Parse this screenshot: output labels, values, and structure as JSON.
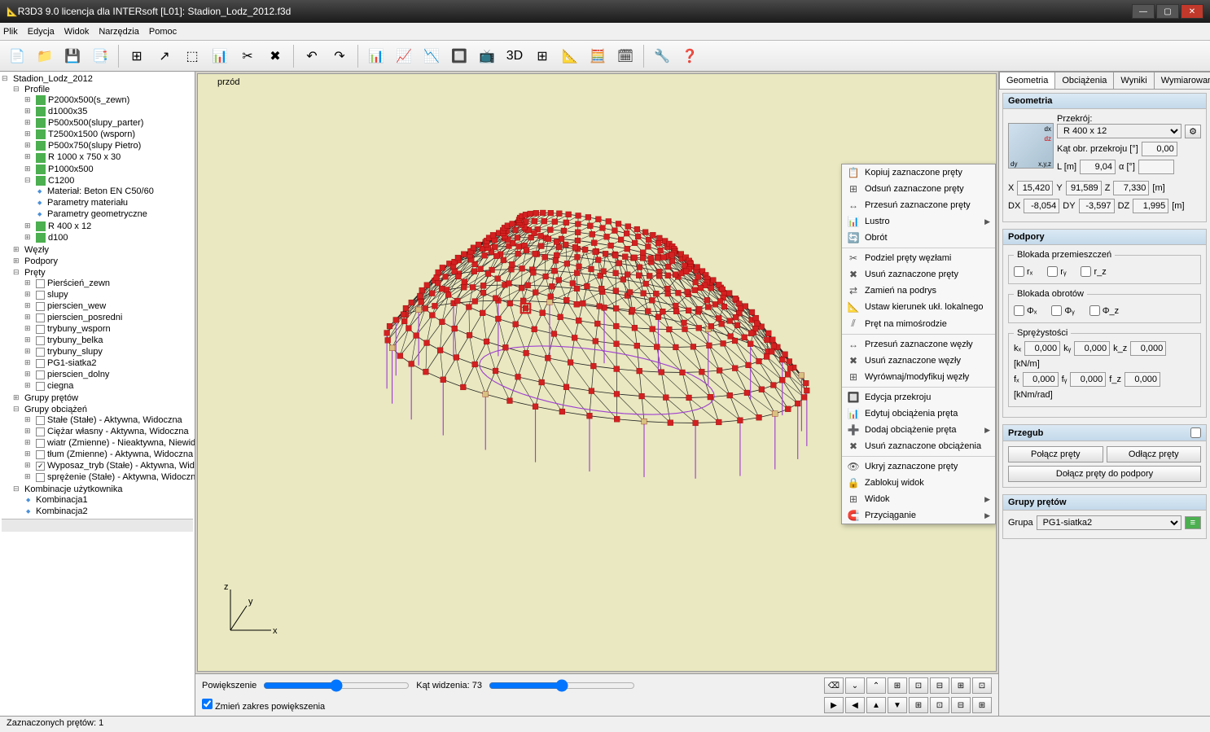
{
  "window": {
    "title": "R3D3 9.0 licencja dla INTERsoft [L01]: Stadion_Lodz_2012.f3d"
  },
  "menu": [
    "Plik",
    "Edycja",
    "Widok",
    "Narzędzia",
    "Pomoc"
  ],
  "toolbar_icons": [
    "📄",
    "📁",
    "💾",
    "📑",
    "|",
    "⊞",
    "↗",
    "⬚",
    "📊",
    "✂",
    "✖",
    "|",
    "↶",
    "↷",
    "|",
    "📊",
    "📈",
    "📉",
    "🔲",
    "📺",
    "3D",
    "⊞",
    "📐",
    "🧮",
    "🗓",
    "|",
    "🔧",
    "❓"
  ],
  "tree": {
    "root": "Stadion_Lodz_2012",
    "profile": "Profile",
    "profiles": [
      "P2000x500(s_zewn)",
      "d1000x35",
      "P500x500(slupy_parter)",
      "T2500x1500 (wsporn)",
      "P500x750(slupy Pietro)",
      "R 1000 x 750 x 30",
      "P1000x500",
      "C1200"
    ],
    "c1200_children": [
      "Materiał: Beton EN C50/60",
      "Parametry materiału",
      "Parametry geometryczne"
    ],
    "profiles_tail": [
      "R 400 x 12",
      "d100"
    ],
    "wezly": "Węzły",
    "podpory": "Podpory",
    "prety": "Pręty",
    "prety_items": [
      "Pierścień_zewn",
      "slupy",
      "pierscien_wew",
      "pierscien_posredni",
      "trybuny_wsporn",
      "trybuny_belka",
      "trybuny_slupy",
      "PG1-siatka2",
      "pierscien_dolny",
      "ciegna"
    ],
    "grupy_pretow": "Grupy prętów",
    "grupy_obc": "Grupy obciążeń",
    "obc_items": [
      "Stałe (Stałe) - Aktywna, Widoczna",
      "Ciężar własny - Aktywna, Widoczna",
      "wiatr (Zmienne) - Nieaktywna, Niewidoczna",
      "tłum (Zmienne) - Aktywna, Widoczna",
      "Wyposaz_tryb (Stałe) - Aktywna, Widoczna",
      "sprężenie (Stałe) - Aktywna, Widoczna"
    ],
    "obc_checked": 4,
    "komb": "Kombinacje użytkownika",
    "komb_items": [
      "Kombinacja1",
      "Kombinacja2"
    ]
  },
  "viewport": {
    "label": "przód",
    "bg": "#e9e8c0",
    "node_color": "#d32020",
    "edge_color": "#222222",
    "support_color": "#a040d0",
    "beige_node": "#d8c080"
  },
  "context_menu": [
    {
      "icon": "📋",
      "label": "Kopiuj zaznaczone pręty"
    },
    {
      "icon": "⊞",
      "label": "Odsuń zaznaczone pręty"
    },
    {
      "icon": "↔",
      "label": "Przesuń zaznaczone pręty"
    },
    {
      "icon": "📊",
      "label": "Lustro",
      "sub": true
    },
    {
      "icon": "🔄",
      "label": "Obrót"
    },
    {
      "sep": true
    },
    {
      "icon": "✂",
      "label": "Podziel pręty węzłami"
    },
    {
      "icon": "✖",
      "label": "Usuń zaznaczone pręty"
    },
    {
      "icon": "⇄",
      "label": "Zamień na podrys"
    },
    {
      "icon": "📐",
      "label": "Ustaw kierunek ukł. lokalnego"
    },
    {
      "icon": "⫽",
      "label": "Pręt na mimośrodzie"
    },
    {
      "sep": true
    },
    {
      "icon": "↔",
      "label": "Przesuń zaznaczone węzły"
    },
    {
      "icon": "✖",
      "label": "Usuń zaznaczone węzły"
    },
    {
      "icon": "⊞",
      "label": "Wyrównaj/modyfikuj węzły"
    },
    {
      "sep": true
    },
    {
      "icon": "🔲",
      "label": "Edycja przekroju"
    },
    {
      "icon": "📊",
      "label": "Edytuj obciążenia pręta"
    },
    {
      "icon": "➕",
      "label": "Dodaj obciążenie pręta",
      "sub": true
    },
    {
      "icon": "✖",
      "label": "Usuń zaznaczone obciążenia"
    },
    {
      "sep": true
    },
    {
      "icon": "👁",
      "label": "Ukryj zaznaczone pręty"
    },
    {
      "icon": "🔒",
      "label": "Zablokuj widok"
    },
    {
      "icon": "⊞",
      "label": "Widok",
      "sub": true
    },
    {
      "icon": "🧲",
      "label": "Przyciąganie",
      "sub": true
    }
  ],
  "bottom": {
    "zoom_label": "Powiększenie",
    "fov_label": "Kąt widzenia: 73",
    "checkbox": "Zmień zakres powiększenia"
  },
  "tabs": [
    "Geometria",
    "Obciążenia",
    "Wyniki",
    "Wymiarowanie"
  ],
  "geom": {
    "header": "Geometria",
    "przekroj_label": "Przekrój:",
    "przekroj_value": "R 400 x 12",
    "kat_label": "Kąt obr. przekroju [°]",
    "kat_value": "0,00",
    "L_label": "L [m]",
    "L_value": "9,04",
    "a_label": "α [°]",
    "a_value": "",
    "X": "15,420",
    "Y": "91,589",
    "Z": "7,330",
    "DX": "-8,054",
    "DY": "-3,597",
    "DZ": "1,995",
    "unit_m": "[m]"
  },
  "podpory": {
    "header": "Podpory",
    "blokada_przem": "Blokada przemieszczeń",
    "blokada_obr": "Blokada obrotów",
    "sprez": "Sprężystości",
    "rx": "rₓ",
    "ry": "rᵧ",
    "rz": "r_z",
    "phix": "Φₓ",
    "phiy": "Φᵧ",
    "phiz": "Φ_z",
    "kx": "kₓ",
    "ky": "kᵧ",
    "kz": "k_z",
    "fx": "fₓ",
    "fy": "fᵧ",
    "fz": "f_z",
    "zero": "0,000",
    "unit_knm": "[kN/m]",
    "unit_knmrad": "[kNm/rad]"
  },
  "przegub": {
    "header": "Przegub",
    "polacz": "Połącz pręty",
    "odlacz": "Odłącz pręty",
    "dolacz": "Dołącz pręty do podpory"
  },
  "grupy": {
    "header": "Grupy prętów",
    "label": "Grupa",
    "value": "PG1-siatka2"
  },
  "status": "Zaznaczonych prętów: 1"
}
